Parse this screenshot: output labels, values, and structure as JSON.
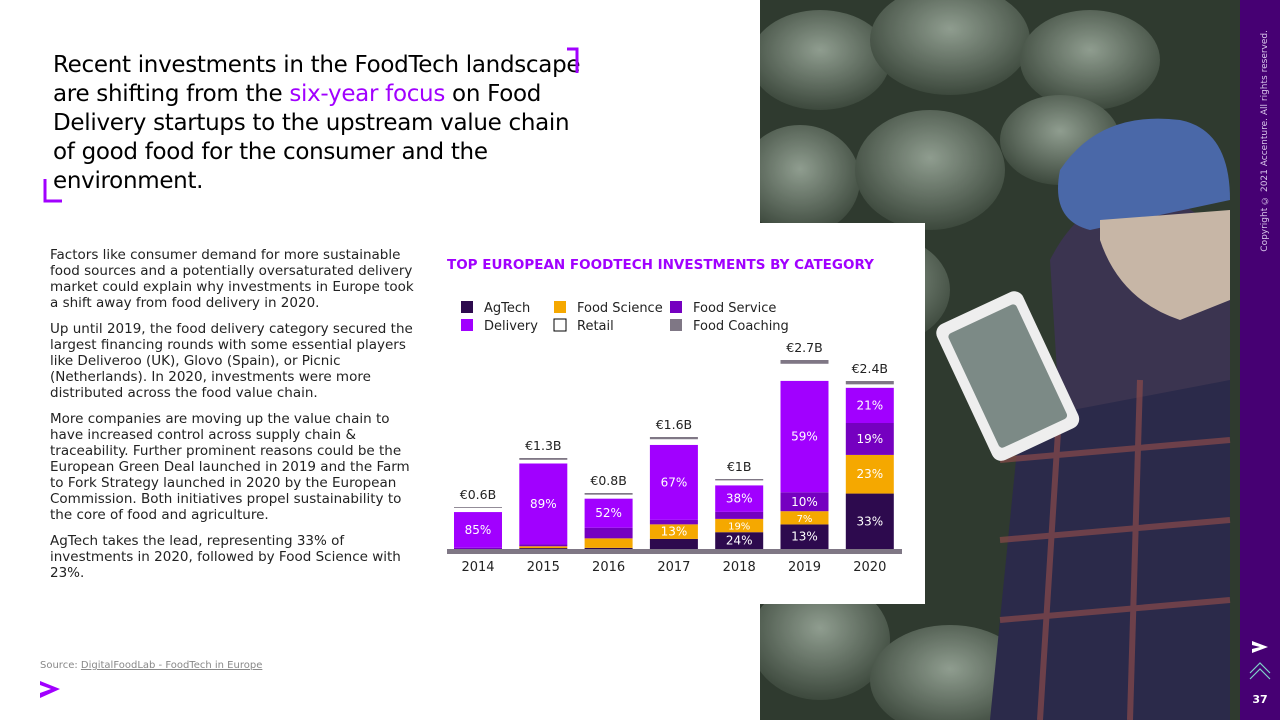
{
  "headline": [
    "Recent investments in the FoodTech landscape are shifting from the ",
    "six-year focus",
    " on Food Delivery startups to the upstream value chain of good food for the consumer and the environment."
  ],
  "paragraphs": [
    "Factors like consumer demand for more sustainable food sources and a potentially oversaturated delivery market could explain why investments in Europe took a shift away from food delivery in 2020.",
    "Up until 2019, the food delivery category secured the largest financing rounds with some essential players like Deliveroo (UK), Glovo (Spain), or Picnic (Netherlands). In 2020, investments were more distributed across the food value chain.",
    "More companies are moving up the value chain to have increased control across supply chain & traceability. Further prominent reasons could be the European Green Deal launched in 2019 and the Farm to Fork Strategy launched in 2020 by the European Commission. Both initiatives propel sustainability to the core of food and agriculture.",
    "AgTech takes the lead, representing 33% of investments in 2020, followed by Food Science with 23%."
  ],
  "source": {
    "label": "Source: ",
    "link": "DigitalFoodLab - FoodTech in Europe"
  },
  "copyright": "Copyright © 2021 Accenture. All rights reserved.",
  "page_number": "37",
  "chart_data": {
    "type": "stacked_bar",
    "title": "TOP EUROPEAN FOODTECH INVESTMENTS BY CATEGORY",
    "categories": [
      "2014",
      "2015",
      "2016",
      "2017",
      "2018",
      "2019",
      "2020"
    ],
    "totals": {
      "values": [
        0.6,
        1.3,
        0.8,
        1.6,
        1,
        2.7,
        2.4
      ],
      "value_labels": [
        "€0.6B",
        "€1.3B",
        "€0.8B",
        "€1.6B",
        "€1B",
        "€2.7B",
        "€2.4B"
      ]
    },
    "series": [
      {
        "name": "AgTech",
        "color": "#2d0a4e",
        "values": [
          0,
          1,
          2,
          9,
          24,
          13,
          33
        ],
        "value_labels": [
          null,
          null,
          null,
          null,
          "24%",
          "13%",
          "33%"
        ]
      },
      {
        "name": "Food Science",
        "color": "#f5a800",
        "values": [
          0,
          2,
          17,
          13,
          19,
          7,
          23
        ],
        "value_labels": [
          null,
          null,
          null,
          "13%",
          "19%",
          "7%",
          "23%"
        ]
      },
      {
        "name": "Food Service",
        "color": "#7500c0",
        "values": [
          3,
          2,
          19,
          4,
          10,
          10,
          19
        ],
        "value_labels": [
          null,
          null,
          null,
          null,
          null,
          "10%",
          "19%"
        ]
      },
      {
        "name": "Delivery",
        "color": "#a100ff",
        "values": [
          85,
          89,
          52,
          67,
          38,
          59,
          21
        ],
        "value_labels": [
          "85%",
          "89%",
          "52%",
          "67%",
          "38%",
          "59%",
          "21%"
        ]
      },
      {
        "name": "Retail",
        "color": "#ffffff",
        "values": [
          10,
          4,
          7,
          5,
          7,
          9,
          2
        ],
        "value_labels": [
          null,
          null,
          null,
          null,
          null,
          null,
          null
        ]
      },
      {
        "name": "Food Coaching",
        "color": "#7f7785",
        "values": [
          2,
          2,
          3,
          2,
          2,
          2,
          2
        ],
        "value_labels": [
          null,
          null,
          null,
          null,
          null,
          null,
          null
        ]
      }
    ]
  }
}
